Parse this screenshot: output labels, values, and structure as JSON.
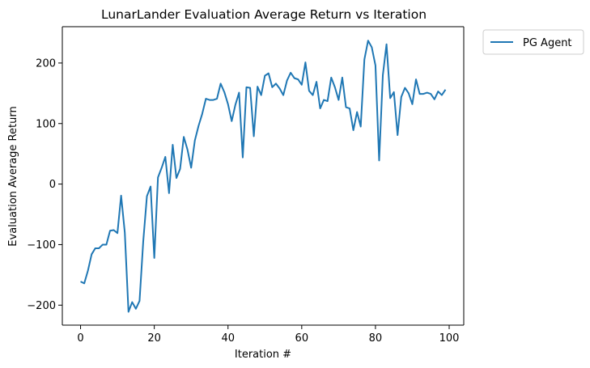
{
  "chart_data": {
    "type": "line",
    "title": "LunarLander Evaluation Average Return vs Iteration",
    "xlabel": "Iteration #",
    "ylabel": "Evaluation Average Return",
    "xlim": [
      -4.95,
      103.95
    ],
    "ylim": [
      -233,
      260
    ],
    "xticks": [
      0,
      20,
      40,
      60,
      80,
      100
    ],
    "yticks": [
      -200,
      -100,
      0,
      100,
      200
    ],
    "grid": false,
    "legend_position": "outside-top-right",
    "series": [
      {
        "name": "PG Agent",
        "color": "#1f77b4",
        "x": [
          0,
          1,
          2,
          3,
          4,
          5,
          6,
          7,
          8,
          9,
          10,
          11,
          12,
          13,
          14,
          15,
          16,
          17,
          18,
          19,
          20,
          21,
          22,
          23,
          24,
          25,
          26,
          27,
          28,
          29,
          30,
          31,
          32,
          33,
          34,
          35,
          36,
          37,
          38,
          39,
          40,
          41,
          42,
          43,
          44,
          45,
          46,
          47,
          48,
          49,
          50,
          51,
          52,
          53,
          54,
          55,
          56,
          57,
          58,
          59,
          60,
          61,
          62,
          63,
          64,
          65,
          66,
          67,
          68,
          69,
          70,
          71,
          72,
          73,
          74,
          75,
          76,
          77,
          78,
          79,
          80,
          81,
          82,
          83,
          84,
          85,
          86,
          87,
          88,
          89,
          90,
          91,
          92,
          93,
          94,
          95,
          96,
          97,
          98,
          99
        ],
        "y": [
          -161,
          -164,
          -143,
          -116,
          -106,
          -106,
          -100,
          -100,
          -77,
          -76,
          -81,
          -19,
          -80,
          -211,
          -195,
          -206,
          -193,
          -95,
          -20,
          -4,
          -122,
          11,
          27,
          45,
          -15,
          65,
          10,
          25,
          78,
          57,
          27,
          72,
          96,
          116,
          141,
          139,
          139,
          141,
          166,
          152,
          132,
          104,
          131,
          151,
          44,
          160,
          159,
          79,
          161,
          147,
          179,
          183,
          160,
          166,
          158,
          147,
          171,
          184,
          175,
          173,
          164,
          201,
          154,
          147,
          169,
          125,
          139,
          137,
          176,
          160,
          139,
          176,
          127,
          125,
          89,
          119,
          95,
          206,
          237,
          226,
          196,
          39,
          180,
          231,
          142,
          152,
          81,
          144,
          159,
          150,
          132,
          173,
          149,
          149,
          151,
          149,
          140,
          153,
          147,
          156
        ]
      }
    ]
  }
}
